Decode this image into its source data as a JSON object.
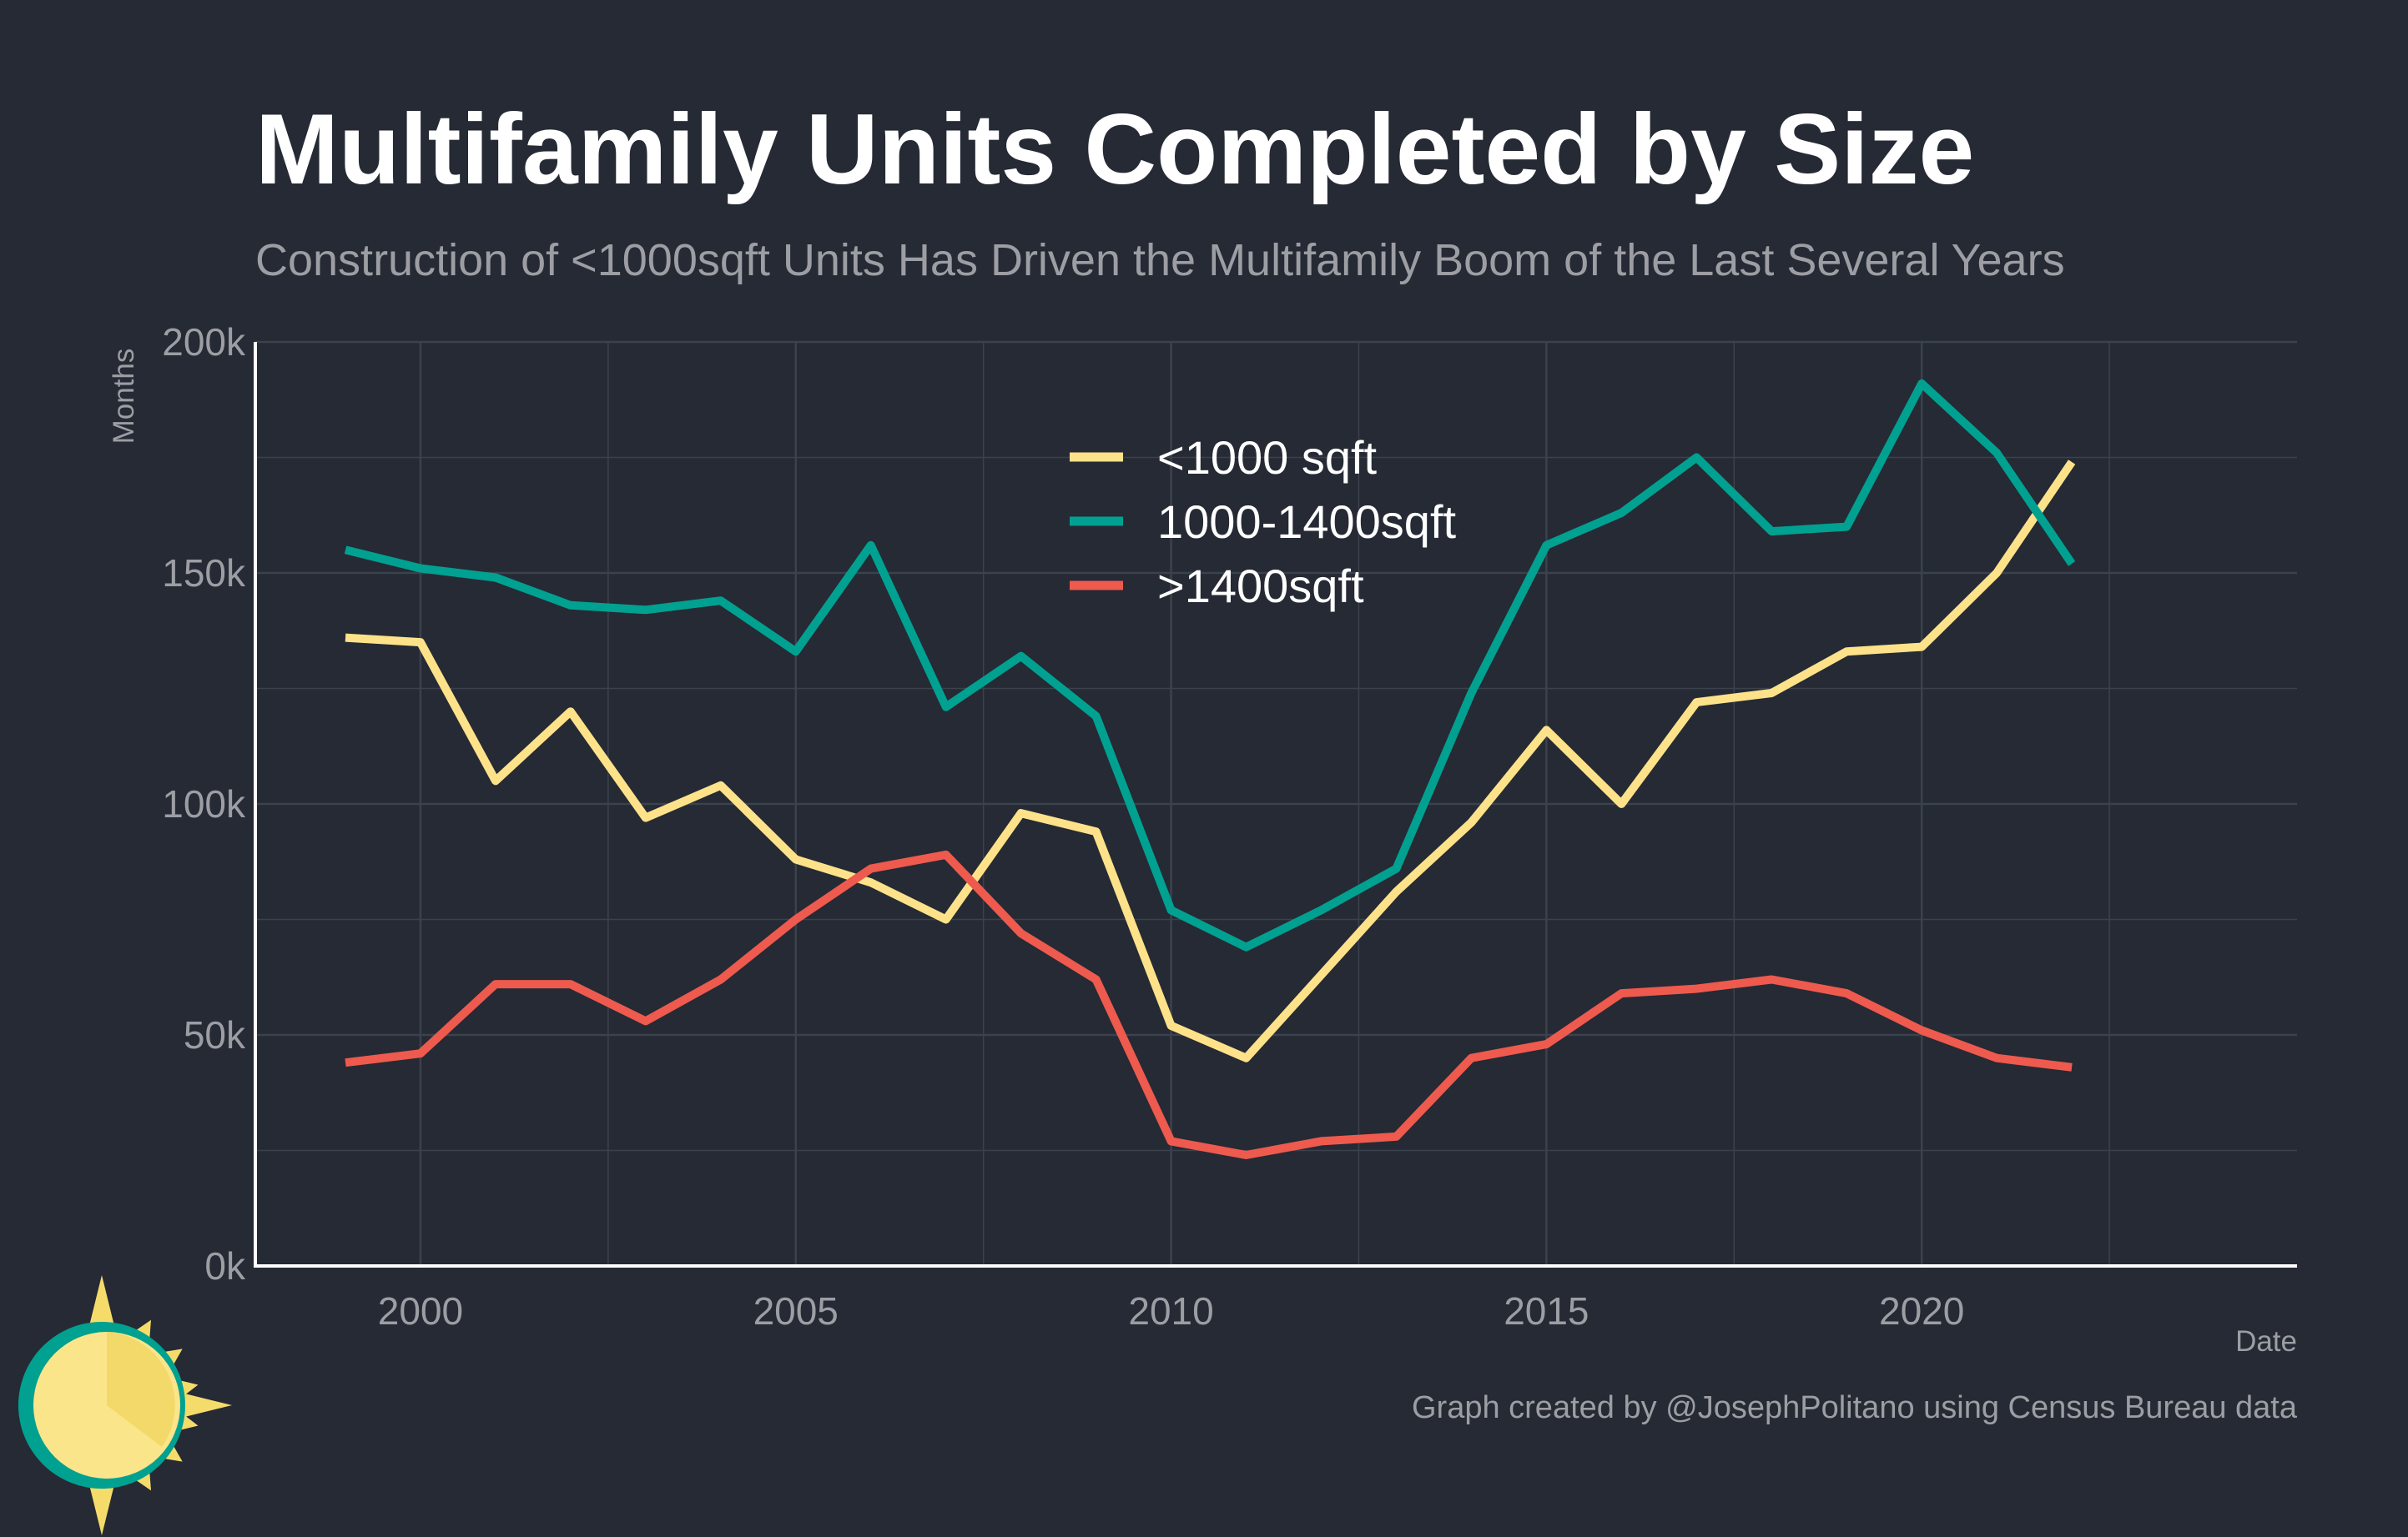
{
  "colors": {
    "background": "#252a34",
    "grid": "#3c424d",
    "axis": "#ffffff",
    "title": "#ffffff",
    "muted": "#9c9ea4"
  },
  "chart_data": {
    "type": "line",
    "title": "Multifamily Units Completed by Size",
    "subtitle": "Construction of <1000sqft Units Has Driven the Multifamily Boom of the Last Several Years",
    "xlabel": "Date",
    "ylabel": "Months",
    "caption": "Graph created by @JosephPolitano using Census Bureau data",
    "xlim": [
      1997.8,
      2025.0
    ],
    "ylim": [
      0,
      200000
    ],
    "x_ticks": [
      2000,
      2005,
      2010,
      2015,
      2020
    ],
    "x_tick_labels": [
      "2000",
      "2005",
      "2010",
      "2015",
      "2020"
    ],
    "y_ticks": [
      0,
      50000,
      100000,
      150000,
      200000
    ],
    "y_tick_labels": [
      "0k",
      "50k",
      "100k",
      "150k",
      "200k"
    ],
    "grid": true,
    "legend_position": "top-center",
    "x": [
      1999,
      2000,
      2001,
      2002,
      2003,
      2004,
      2005,
      2006,
      2007,
      2008,
      2009,
      2010,
      2011,
      2012,
      2013,
      2014,
      2015,
      2016,
      2017,
      2018,
      2019,
      2020,
      2021,
      2022
    ],
    "series": [
      {
        "name": "<1000 sqft",
        "color": "#fde28a",
        "values": [
          136000,
          135000,
          105000,
          120000,
          97000,
          104000,
          88000,
          83000,
          75000,
          98000,
          94000,
          52000,
          45000,
          63000,
          81000,
          96000,
          116000,
          100000,
          122000,
          124000,
          133000,
          134000,
          150000,
          174000
        ]
      },
      {
        "name": "1000-1400sqft",
        "color": "#00a190",
        "values": [
          155000,
          151000,
          149000,
          143000,
          142000,
          144000,
          133000,
          156000,
          121000,
          132000,
          119000,
          77000,
          69000,
          77000,
          86000,
          124000,
          156000,
          163000,
          175000,
          159000,
          160000,
          191000,
          176000,
          152000
        ]
      },
      {
        "name": ">1400sqft",
        "color": "#ee5a4e",
        "values": [
          44000,
          46000,
          61000,
          61000,
          53000,
          62000,
          75000,
          86000,
          89000,
          72000,
          62000,
          27000,
          24000,
          27000,
          28000,
          45000,
          48000,
          59000,
          60000,
          62000,
          59000,
          51000,
          45000,
          43000
        ]
      }
    ]
  },
  "logo": {
    "icon": "sun-logo-icon",
    "ring_color": "#00a190",
    "ray_color": "#f5dc6a",
    "disc_color": "#fbe58a"
  }
}
